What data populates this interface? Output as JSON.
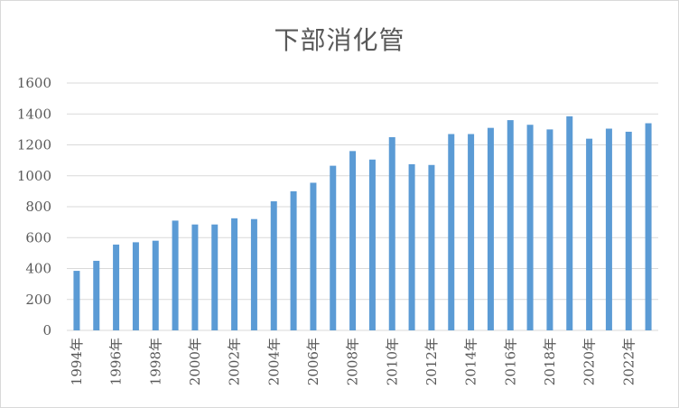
{
  "chart_data": {
    "type": "bar",
    "title": "下部消化管",
    "xlabel": "",
    "ylabel": "",
    "ylim": [
      0,
      1600
    ],
    "yticks": [
      0,
      200,
      400,
      600,
      800,
      1000,
      1200,
      1400,
      1600
    ],
    "grid": true,
    "legend": "none",
    "bar_color": "#5b9bd5",
    "categories": [
      "1994年",
      "1995年",
      "1996年",
      "1997年",
      "1998年",
      "1999年",
      "2000年",
      "2001年",
      "2002年",
      "2003年",
      "2004年",
      "2005年",
      "2006年",
      "2007年",
      "2008年",
      "2009年",
      "2010年",
      "2011年",
      "2012年",
      "2013年",
      "2014年",
      "2015年",
      "2016年",
      "2017年",
      "2018年",
      "2019年",
      "2020年",
      "2021年",
      "2022年",
      "2023年"
    ],
    "tick_labels_shown": [
      "1994年",
      "",
      "1996年",
      "",
      "1998年",
      "",
      "2000年",
      "",
      "2002年",
      "",
      "2004年",
      "",
      "2006年",
      "",
      "2008年",
      "",
      "2010年",
      "",
      "2012年",
      "",
      "2014年",
      "",
      "2016年",
      "",
      "2018年",
      "",
      "2020年",
      "",
      "2022年",
      ""
    ],
    "values": [
      385,
      450,
      555,
      570,
      580,
      710,
      685,
      685,
      725,
      720,
      835,
      900,
      955,
      1065,
      1160,
      1105,
      1250,
      1075,
      1070,
      1270,
      1270,
      1310,
      1360,
      1330,
      1300,
      1385,
      1240,
      1305,
      1285,
      1340
    ]
  }
}
